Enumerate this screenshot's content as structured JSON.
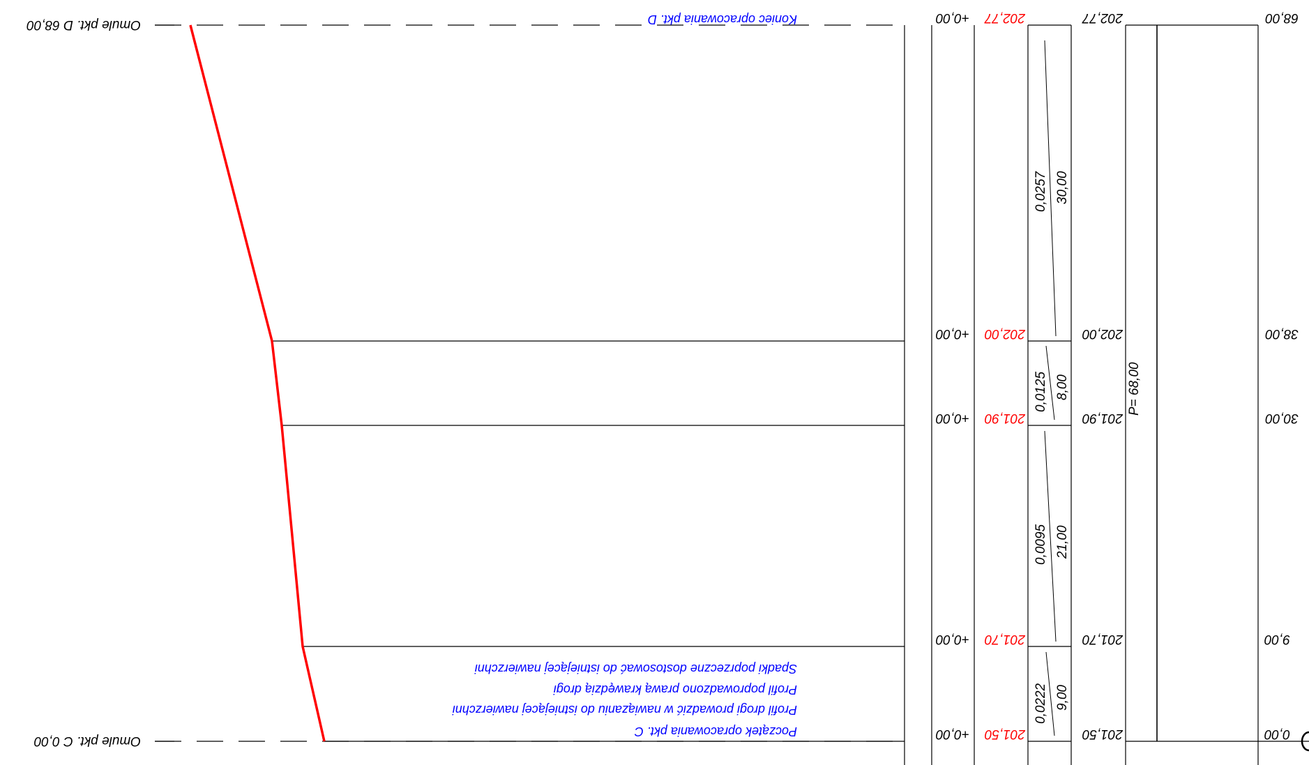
{
  "drawing": {
    "title_top": "Koniec opracowania pkt. D",
    "notes": [
      "Spadki poprzeczne dostosować do istniejącej nawierzchni",
      "Profil poprowadzono prawą krawędzią drogi",
      "Profil drogi prowadzić w nawiązaniu do istniejącej nawierzchni",
      "Początek opracowania pkt. C"
    ],
    "end_label_top": "Omule pkt. D  68,00",
    "end_label_bottom": "Omule pkt. C  0,00",
    "design_elevations": [
      "202,77",
      "202,00",
      "201,90",
      "201,70",
      "201,50"
    ],
    "diffs": [
      "+0,00",
      "+0,00",
      "+0,00",
      "+0,00",
      "+0,00"
    ],
    "terrain_elevations": [
      "202,77",
      "202,00",
      "201,90",
      "201,70",
      "201,50"
    ],
    "grades": [
      {
        "slope": "0,0257",
        "length": "30,00"
      },
      {
        "slope": "0,0125",
        "length": "8,00"
      },
      {
        "slope": "0,0095",
        "length": "21,00"
      },
      {
        "slope": "0,0222",
        "length": "9,00"
      }
    ],
    "plan_label": "P= 68,00",
    "stations": [
      "68,00",
      "38,00",
      "30,00",
      "9,00",
      "0,00"
    ]
  },
  "colors": {
    "profile": "#ff0000",
    "text": "#0000ff",
    "elevation": "#ff0000",
    "lines": "#000000"
  }
}
